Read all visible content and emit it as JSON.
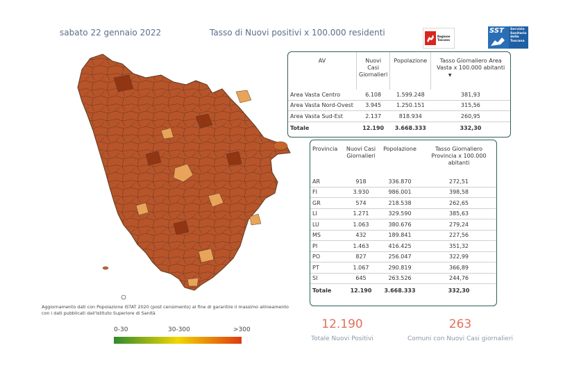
{
  "header": {
    "date": "sabato 22 gennaio 2022",
    "title": "Tasso di Nuovi positivi x 100.000 residenti"
  },
  "logos": {
    "toscana_text": "Regione Toscana",
    "sst_badge": "SST",
    "sst_text": "Servizio Sanitario della Toscana"
  },
  "av_table": {
    "headers": [
      "AV",
      "Nuovi Casi Giornalieri",
      "Popolazione",
      "Tasso Giornaliero Area Vasta x 100.000 abitanti"
    ],
    "rows": [
      [
        "Area Vasta Centro",
        "6.108",
        "1.599.248",
        "381,93"
      ],
      [
        "Area Vasta Nord-Ovest",
        "3.945",
        "1.250.151",
        "315,56"
      ],
      [
        "Area Vasta Sud-Est",
        "2.137",
        "818.934",
        "260,95"
      ]
    ],
    "total": [
      "Totale",
      "12.190",
      "3.668.333",
      "332,30"
    ]
  },
  "prov_table": {
    "headers": [
      "Provincia",
      "Nuovi Casi Giornalieri",
      "Popolazione",
      "Tasso Giornaliero Provincia x 100.000 abitanti"
    ],
    "rows": [
      [
        "AR",
        "918",
        "336.870",
        "272,51"
      ],
      [
        "FI",
        "3.930",
        "986.001",
        "398,58"
      ],
      [
        "GR",
        "574",
        "218.538",
        "262,65"
      ],
      [
        "LI",
        "1.271",
        "329.590",
        "385,63"
      ],
      [
        "LU",
        "1.063",
        "380.676",
        "279,24"
      ],
      [
        "MS",
        "432",
        "189.841",
        "227,56"
      ],
      [
        "PI",
        "1.463",
        "416.425",
        "351,32"
      ],
      [
        "PO",
        "827",
        "256.047",
        "322,99"
      ],
      [
        "PT",
        "1.067",
        "290.819",
        "366,89"
      ],
      [
        "SI",
        "645",
        "263.526",
        "244,76"
      ]
    ],
    "total": [
      "Totale",
      "12.190",
      "3.668.333",
      "332,30"
    ]
  },
  "footnote": {
    "line1": "Aggiornamento dati con Popolazione ISTAT 2020 (post censimento) al fine di garantire il massimo allineamento",
    "line2": "con i dati pubblicati dall'Istituto Superiore di Sanità"
  },
  "legend": {
    "low": "0-30",
    "mid": "30-300",
    "high": ">300",
    "colors": [
      "#2e8b2e",
      "#f2d600",
      "#e03a10"
    ]
  },
  "kpis": {
    "total_value": "12.190",
    "total_label": "Totale Nuovi Positivi",
    "comuni_value": "263",
    "comuni_label": "Comuni con Nuovi Casi giornalieri"
  },
  "map_colors": {
    "dark": "#a8441d",
    "mid": "#c8652b",
    "light": "#e8a45a",
    "border": "#5a3a20"
  }
}
